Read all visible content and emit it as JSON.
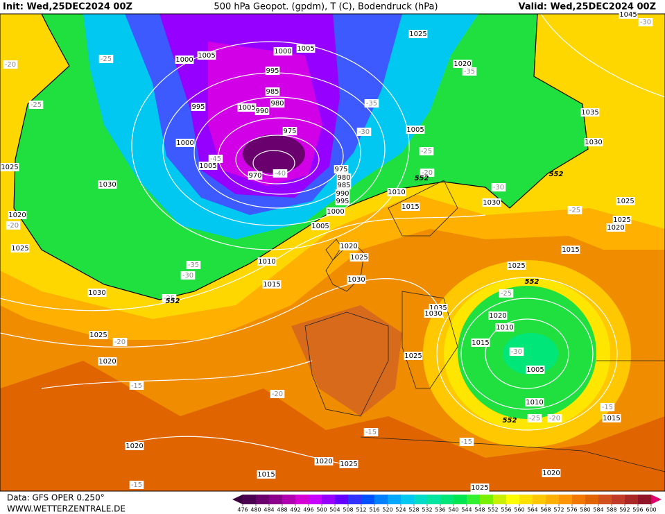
{
  "header": {
    "init": "Init: Wed,25DEC2024 00Z",
    "title": "500 hPa Geopot. (gpdm), T (C), Bodendruck (hPa)",
    "valid": "Valid: Wed,25DEC2024 00Z"
  },
  "footer": {
    "data": "Data: GFS OPER 0.250°",
    "site": "WWW.WETTERZENTRALE.DE"
  },
  "colorbar": {
    "ticks": [
      476,
      480,
      484,
      488,
      492,
      496,
      500,
      504,
      508,
      512,
      516,
      520,
      524,
      528,
      532,
      536,
      540,
      544,
      548,
      552,
      556,
      560,
      564,
      568,
      572,
      576,
      580,
      584,
      588,
      592,
      596,
      600
    ],
    "colors": [
      "#4b0050",
      "#6a006e",
      "#8a008c",
      "#b000b0",
      "#d400d4",
      "#c800ff",
      "#9600ff",
      "#6400ff",
      "#3232ff",
      "#0050ff",
      "#0080ff",
      "#00a8ff",
      "#00c8f0",
      "#00dcc8",
      "#00e6a0",
      "#00e678",
      "#00e650",
      "#32f032",
      "#78f000",
      "#c8f000",
      "#ffff00",
      "#ffe000",
      "#ffc800",
      "#ffb000",
      "#ff9600",
      "#f07800",
      "#e06400",
      "#d05020",
      "#c03c28",
      "#a82828",
      "#901428"
    ]
  },
  "map": {
    "isobar_labels": [
      "1005",
      "1000",
      "1000",
      "1005",
      "995",
      "985",
      "980",
      "995",
      "1005",
      "990",
      "975",
      "1000",
      "1005",
      "970",
      "975",
      "980",
      "985",
      "990",
      "995",
      "1000",
      "1005",
      "1010",
      "1015",
      "1020",
      "1025",
      "1030",
      "1010",
      "1015",
      "1030",
      "1005",
      "1020",
      "1025",
      "1045",
      "1035",
      "1030",
      "1025",
      "1025",
      "1020",
      "1015",
      "1025",
      "1035",
      "1030",
      "1020",
      "1010",
      "1015",
      "1005",
      "1010",
      "1015",
      "1020",
      "1025",
      "1025",
      "1020",
      "1025",
      "1015",
      "1020",
      "1020",
      "1025",
      "1030",
      "1025",
      "1020",
      "1030",
      "1025"
    ],
    "temperature_labels": [
      "-25",
      "-20",
      "-25",
      "-35",
      "-30",
      "-25",
      "-20",
      "-45",
      "-40",
      "-35",
      "-30",
      "-30",
      "-25",
      "-20",
      "-35",
      "-30",
      "-25",
      "-20",
      "-15",
      "-20",
      "-15",
      "-15",
      "-15",
      "-25",
      "-30",
      "-15",
      "-20",
      "-25"
    ],
    "height_labels": [
      "552",
      "552",
      "552",
      "552",
      "552"
    ]
  }
}
